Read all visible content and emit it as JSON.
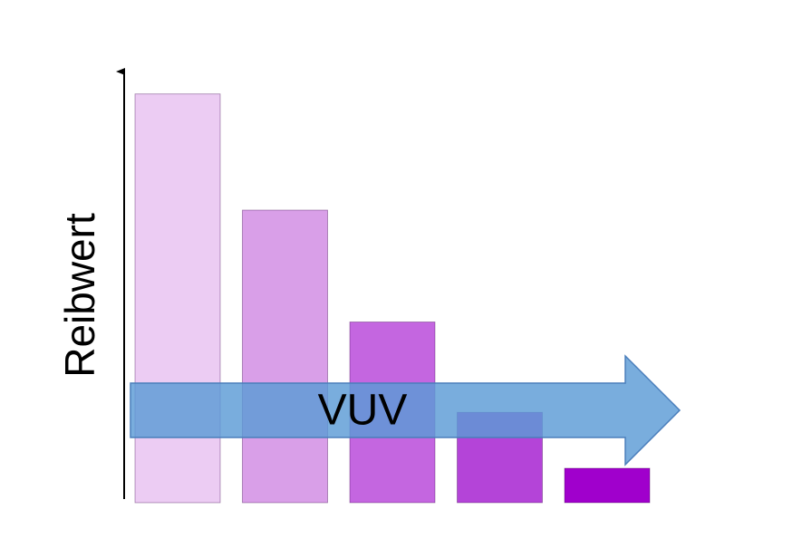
{
  "chart_data": {
    "type": "bar",
    "y_label": "Reibwert",
    "annotation": "VUV",
    "categories": [
      null,
      null,
      null,
      null,
      null
    ],
    "values": [
      95,
      68,
      42,
      21,
      8
    ],
    "colors": [
      "#ecccf3",
      "#d99fe8",
      "#c466e0",
      "#b444d8",
      "#a000cc"
    ],
    "ylim": [
      0,
      100
    ]
  }
}
